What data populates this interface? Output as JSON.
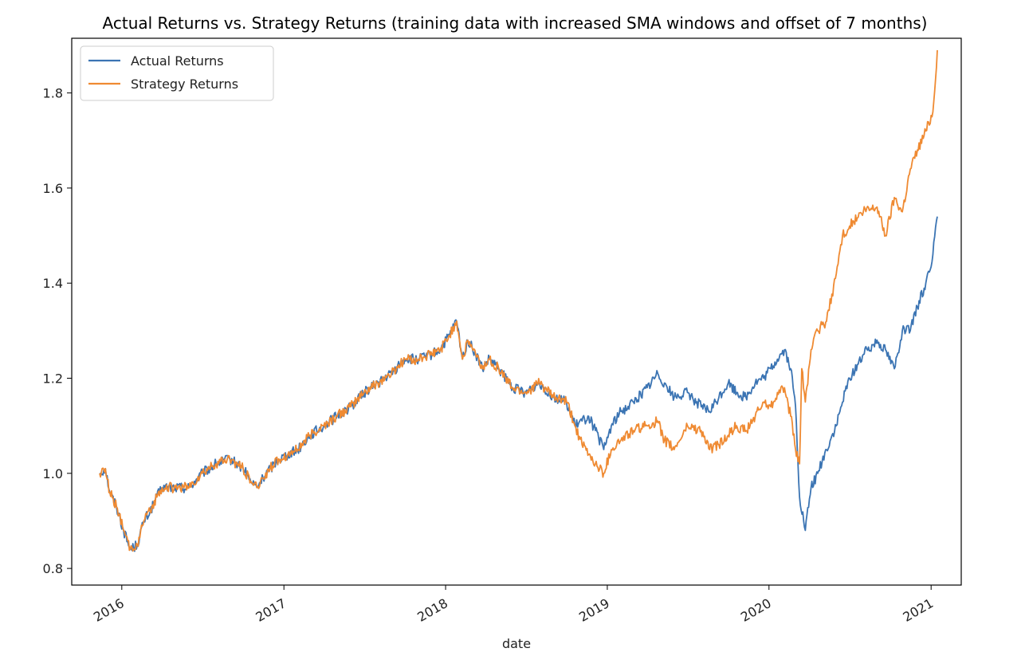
{
  "chart_data": {
    "type": "line",
    "title": "Actual Returns vs. Strategy Returns (training data with increased SMA windows and offset of 7 months)",
    "xlabel": "date",
    "ylabel": "",
    "x_ticks": [
      "2016",
      "2017",
      "2018",
      "2019",
      "2020",
      "2021"
    ],
    "y_ticks": [
      "0.8",
      "1.0",
      "1.2",
      "1.4",
      "1.6",
      "1.8"
    ],
    "xlim": [
      "2015-09-10",
      "2021-03-10"
    ],
    "ylim": [
      0.765,
      1.915
    ],
    "grid": false,
    "legend_position": "top-left",
    "series": [
      {
        "name": "Actual Returns",
        "color": "#3b74b3",
        "x": [
          "2015-11-12",
          "2015-11-25",
          "2015-12-05",
          "2015-12-20",
          "2016-01-05",
          "2016-01-20",
          "2016-02-05",
          "2016-02-20",
          "2016-03-05",
          "2016-03-20",
          "2016-04-01",
          "2016-05-01",
          "2016-06-01",
          "2016-07-01",
          "2016-08-01",
          "2016-09-01",
          "2016-10-01",
          "2016-10-20",
          "2016-11-01",
          "2016-11-15",
          "2016-12-01",
          "2016-12-20",
          "2017-01-10",
          "2017-02-01",
          "2017-03-01",
          "2017-04-01",
          "2017-05-01",
          "2017-06-01",
          "2017-07-01",
          "2017-08-01",
          "2017-09-01",
          "2017-10-01",
          "2017-11-01",
          "2017-12-01",
          "2017-12-20",
          "2018-01-10",
          "2018-01-26",
          "2018-02-08",
          "2018-02-20",
          "2018-03-10",
          "2018-03-25",
          "2018-04-10",
          "2018-05-01",
          "2018-06-01",
          "2018-07-01",
          "2018-08-01",
          "2018-09-01",
          "2018-10-01",
          "2018-10-20",
          "2018-11-05",
          "2018-11-20",
          "2018-12-05",
          "2018-12-24",
          "2019-01-10",
          "2019-02-01",
          "2019-03-01",
          "2019-04-01",
          "2019-04-25",
          "2019-05-10",
          "2019-06-01",
          "2019-07-01",
          "2019-08-01",
          "2019-08-20",
          "2019-09-10",
          "2019-10-01",
          "2019-10-20",
          "2019-11-10",
          "2019-12-01",
          "2019-12-20",
          "2020-01-05",
          "2020-01-20",
          "2020-02-05",
          "2020-02-19",
          "2020-03-01",
          "2020-03-10",
          "2020-03-23",
          "2020-04-05",
          "2020-04-20",
          "2020-05-10",
          "2020-06-01",
          "2020-06-15",
          "2020-07-01",
          "2020-08-01",
          "2020-09-01",
          "2020-09-20",
          "2020-10-10",
          "2020-10-28",
          "2020-11-15",
          "2020-12-01",
          "2020-12-20",
          "2021-01-05",
          "2021-01-15"
        ],
        "y": [
          1.0,
          1.01,
          0.96,
          0.93,
          0.88,
          0.84,
          0.85,
          0.9,
          0.92,
          0.95,
          0.97,
          0.97,
          0.97,
          1.0,
          1.02,
          1.03,
          1.01,
          0.98,
          0.97,
          0.99,
          1.01,
          1.03,
          1.04,
          1.05,
          1.08,
          1.1,
          1.12,
          1.14,
          1.17,
          1.19,
          1.21,
          1.24,
          1.24,
          1.25,
          1.26,
          1.29,
          1.32,
          1.24,
          1.28,
          1.25,
          1.22,
          1.24,
          1.22,
          1.18,
          1.17,
          1.19,
          1.16,
          1.15,
          1.1,
          1.11,
          1.12,
          1.09,
          1.05,
          1.1,
          1.13,
          1.15,
          1.18,
          1.21,
          1.19,
          1.16,
          1.17,
          1.14,
          1.13,
          1.16,
          1.19,
          1.17,
          1.16,
          1.19,
          1.2,
          1.22,
          1.24,
          1.26,
          1.22,
          1.14,
          0.95,
          0.88,
          0.97,
          1.0,
          1.05,
          1.1,
          1.15,
          1.2,
          1.25,
          1.28,
          1.26,
          1.22,
          1.3,
          1.3,
          1.35,
          1.4,
          1.46,
          1.54
        ]
      },
      {
        "name": "Strategy Returns",
        "color": "#ef8a32",
        "x": [
          "2015-11-12",
          "2015-11-25",
          "2015-12-05",
          "2015-12-20",
          "2016-01-05",
          "2016-01-20",
          "2016-02-05",
          "2016-02-20",
          "2016-03-05",
          "2016-03-20",
          "2016-04-01",
          "2016-05-01",
          "2016-06-01",
          "2016-07-01",
          "2016-08-01",
          "2016-09-01",
          "2016-10-01",
          "2016-10-20",
          "2016-11-01",
          "2016-11-15",
          "2016-12-01",
          "2016-12-20",
          "2017-01-10",
          "2017-02-01",
          "2017-03-01",
          "2017-04-01",
          "2017-05-01",
          "2017-06-01",
          "2017-07-01",
          "2017-08-01",
          "2017-09-01",
          "2017-10-01",
          "2017-11-01",
          "2017-12-01",
          "2017-12-20",
          "2018-01-10",
          "2018-01-26",
          "2018-02-08",
          "2018-02-20",
          "2018-03-10",
          "2018-03-25",
          "2018-04-10",
          "2018-05-01",
          "2018-06-01",
          "2018-07-01",
          "2018-08-01",
          "2018-09-01",
          "2018-10-01",
          "2018-10-20",
          "2018-11-05",
          "2018-11-20",
          "2018-12-05",
          "2018-12-24",
          "2019-01-10",
          "2019-02-01",
          "2019-03-01",
          "2019-04-01",
          "2019-04-25",
          "2019-05-10",
          "2019-06-01",
          "2019-07-01",
          "2019-08-01",
          "2019-08-20",
          "2019-09-10",
          "2019-10-01",
          "2019-10-20",
          "2019-11-10",
          "2019-12-01",
          "2019-12-20",
          "2020-01-05",
          "2020-01-20",
          "2020-02-05",
          "2020-02-19",
          "2020-03-01",
          "2020-03-10",
          "2020-03-15",
          "2020-03-23",
          "2020-04-05",
          "2020-04-20",
          "2020-05-10",
          "2020-06-01",
          "2020-06-15",
          "2020-07-01",
          "2020-08-01",
          "2020-09-01",
          "2020-09-20",
          "2020-10-10",
          "2020-10-28",
          "2020-11-15",
          "2020-12-01",
          "2020-12-20",
          "2021-01-05",
          "2021-01-15"
        ],
        "y": [
          1.0,
          1.01,
          0.96,
          0.93,
          0.88,
          0.84,
          0.85,
          0.9,
          0.92,
          0.95,
          0.97,
          0.97,
          0.97,
          1.0,
          1.02,
          1.03,
          1.01,
          0.98,
          0.97,
          0.99,
          1.01,
          1.03,
          1.04,
          1.05,
          1.08,
          1.1,
          1.12,
          1.14,
          1.17,
          1.19,
          1.21,
          1.24,
          1.24,
          1.25,
          1.26,
          1.29,
          1.32,
          1.24,
          1.28,
          1.25,
          1.22,
          1.24,
          1.22,
          1.18,
          1.17,
          1.19,
          1.16,
          1.15,
          1.1,
          1.06,
          1.04,
          1.02,
          1.0,
          1.05,
          1.07,
          1.09,
          1.1,
          1.11,
          1.07,
          1.05,
          1.1,
          1.09,
          1.05,
          1.06,
          1.08,
          1.1,
          1.09,
          1.12,
          1.15,
          1.14,
          1.17,
          1.18,
          1.12,
          1.05,
          1.02,
          1.22,
          1.15,
          1.26,
          1.3,
          1.32,
          1.42,
          1.5,
          1.52,
          1.55,
          1.56,
          1.5,
          1.58,
          1.55,
          1.64,
          1.68,
          1.72,
          1.76,
          1.89
        ]
      }
    ]
  }
}
